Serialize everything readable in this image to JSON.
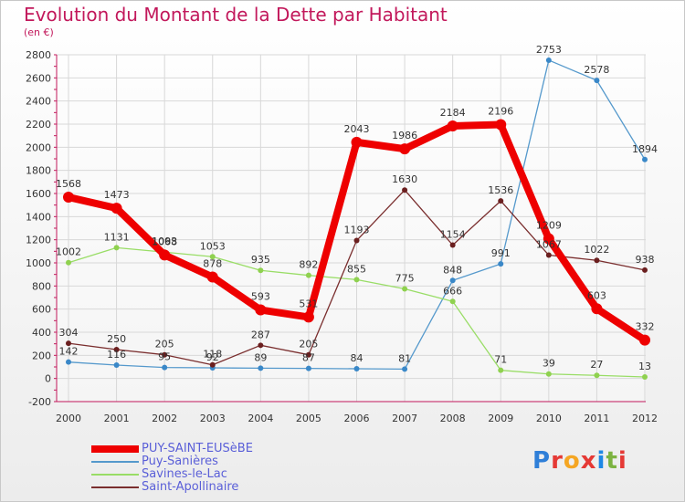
{
  "header": {
    "title": "Evolution du Montant de la Dette par Habitant",
    "unit": "(en €)"
  },
  "logo": {
    "text": "Proxiti",
    "colors": [
      "#2f7fd8",
      "#e53935",
      "#f5a623",
      "#e53935",
      "#1e88e5",
      "#7cb342",
      "#e53935"
    ]
  },
  "chart_data": {
    "type": "line",
    "title": "Evolution du Montant de la Dette par Habitant",
    "ylabel": "(en €)",
    "xlabel": "",
    "ylim": [
      -200,
      2800
    ],
    "yticks": [
      -200,
      0,
      200,
      400,
      600,
      800,
      1000,
      1200,
      1400,
      1600,
      1800,
      2000,
      2200,
      2400,
      2600,
      2800
    ],
    "grid": true,
    "legend_position": "bottom-left",
    "x": [
      "2000",
      "2001",
      "2002",
      "2003",
      "2004",
      "2005",
      "2006",
      "2007",
      "2008",
      "2009",
      "2010",
      "2011",
      "2012"
    ],
    "series": [
      {
        "name": "Puy-Sanières",
        "color": "#5599cc",
        "values": [
          142,
          116,
          95,
          92,
          89,
          87,
          84,
          81,
          848,
          991,
          2753,
          2578,
          1894
        ]
      },
      {
        "name": "Savines-le-Lac",
        "color": "#99dd66",
        "values": [
          1002,
          1131,
          1093,
          1053,
          935,
          892,
          855,
          775,
          666,
          71,
          39,
          27,
          13
        ]
      },
      {
        "name": "Saint-Apollinaire",
        "color": "#7a2e2e",
        "values": [
          304,
          250,
          205,
          118,
          287,
          205,
          1193,
          1630,
          1154,
          1536,
          1067,
          1022,
          938
        ]
      },
      {
        "name": "PUY-SAINT-EUSèBE",
        "color": "#ee0000",
        "values": [
          1568,
          1473,
          1068,
          878,
          593,
          531,
          2043,
          1986,
          2184,
          2196,
          1209,
          603,
          332
        ]
      }
    ]
  }
}
